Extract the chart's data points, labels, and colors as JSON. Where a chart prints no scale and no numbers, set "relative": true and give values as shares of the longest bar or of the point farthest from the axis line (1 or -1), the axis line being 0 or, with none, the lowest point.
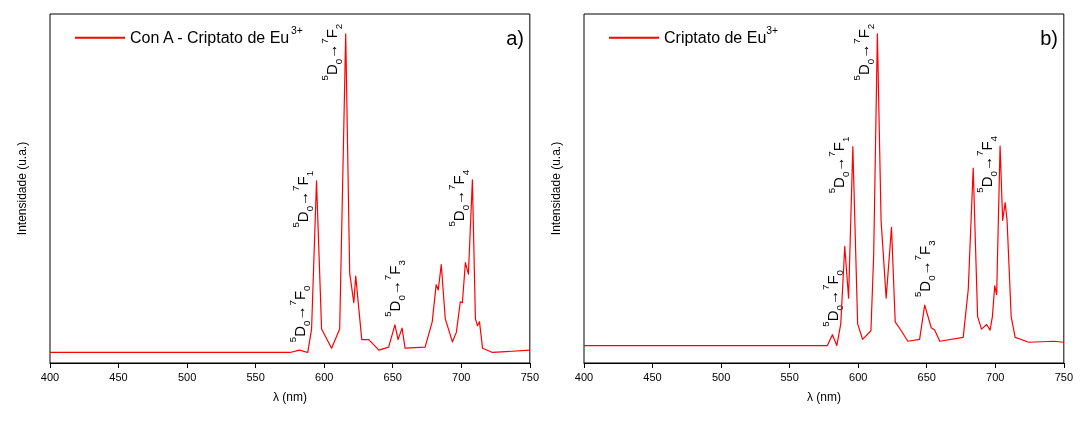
{
  "chart_data": [
    {
      "type": "line",
      "relative": true,
      "xlabel": "λ (nm)",
      "ylabel": "Intensidade (u.a.)",
      "xlim": [
        400,
        750
      ],
      "xticks": [
        400,
        450,
        500,
        550,
        600,
        650,
        700,
        750
      ],
      "grid": false,
      "legend": "top left",
      "marker": "none",
      "line_style": "solid",
      "series": [
        {
          "name": "Con A - Criptato de Eu$^{3+}$",
          "color": "#ff0000",
          "x": [
            400,
            575,
            582,
            588,
            590.8,
            594.4,
            598.1,
            605.4,
            611.3,
            615.7,
            618.6,
            621.6,
            623,
            627.4,
            632.5,
            639.9,
            647,
            651.6,
            653.9,
            656.8,
            659,
            673.6,
            678.8,
            681.7,
            683.2,
            685.4,
            688.3,
            693.5,
            696.4,
            699.3,
            700.8,
            703,
            705.2,
            708.1,
            710.3,
            711.8,
            713.3,
            715.5,
            722.8,
            750
          ],
          "values": [
            0.032,
            0.032,
            0.039,
            0.032,
            0.103,
            0.553,
            0.103,
            0.045,
            0.103,
            1.0,
            0.273,
            0.183,
            0.264,
            0.071,
            0.071,
            0.039,
            0.048,
            0.116,
            0.071,
            0.106,
            0.045,
            0.048,
            0.125,
            0.238,
            0.222,
            0.299,
            0.135,
            0.064,
            0.093,
            0.186,
            0.183,
            0.305,
            0.27,
            0.556,
            0.135,
            0.113,
            0.125,
            0.045,
            0.032,
            0.039
          ]
        }
      ],
      "annotations": [
        "a)",
        {
          "text": "$^{5}$D$_{0}$→$^{7}$F$_{0}$",
          "x": 582,
          "y": 0.039
        },
        {
          "text": "$^{5}$D$_{0}$→$^{7}$F$_{1}$",
          "x": 594.4,
          "y": 0.553
        },
        {
          "text": "$^{5}$D$_{0}$→$^{7}$F$_{2}$",
          "x": 615.7,
          "y": 1.0
        },
        {
          "text": "$^{5}$D$_{0}$→$^{7}$F$_{3}$",
          "x": 651.6,
          "y": 0.116
        },
        {
          "text": "$^{5}$D$_{0}$→$^{7}$F$_{4}$",
          "x": 708.1,
          "y": 0.556
        }
      ]
    },
    {
      "type": "line",
      "relative": true,
      "xlabel": "λ (nm)",
      "ylabel": "Intensidade (u.a.)",
      "xlim": [
        400,
        750
      ],
      "xticks": [
        400,
        450,
        500,
        550,
        600,
        650,
        700,
        750
      ],
      "grid": false,
      "legend": "top left",
      "marker": "none",
      "line_style": "solid",
      "series": [
        {
          "name": "Criptato de Eu$^{3+}$",
          "color": "#ff0000",
          "x": [
            400,
            577.5,
            581.2,
            584.4,
            587.3,
            590.2,
            593,
            596.1,
            599.6,
            603.2,
            609.3,
            611.3,
            614,
            616.7,
            620.4,
            624.3,
            627,
            631.4,
            636.2,
            644.8,
            648.5,
            653.3,
            655.8,
            659.5,
            676.6,
            680.3,
            683.9,
            687.1,
            690,
            693.7,
            696.2,
            697.9,
            699.6,
            701,
            703.5,
            705.4,
            707.2,
            708.6,
            711.6,
            714.5,
            724.3,
            742.6,
            750
          ],
          "values": [
            0.053,
            0.053,
            0.086,
            0.053,
            0.119,
            0.354,
            0.197,
            0.657,
            0.119,
            0.072,
            0.098,
            0.329,
            1.0,
            0.433,
            0.197,
            0.412,
            0.125,
            0.098,
            0.066,
            0.072,
            0.176,
            0.107,
            0.1,
            0.066,
            0.078,
            0.224,
            0.592,
            0.141,
            0.103,
            0.117,
            0.1,
            0.141,
            0.234,
            0.208,
            0.659,
            0.433,
            0.487,
            0.433,
            0.141,
            0.078,
            0.063,
            0.066,
            0.063
          ]
        }
      ],
      "annotations": [
        "b)",
        {
          "text": "$^{5}$D$_{0}$→$^{7}$F$_{0}$",
          "x": 581.2,
          "y": 0.086
        },
        {
          "text": "$^{5}$D$_{0}$→$^{7}$F$_{1}$",
          "x": 596.1,
          "y": 0.657
        },
        {
          "text": "$^{5}$D$_{0}$→$^{7}$F$_{2}$",
          "x": 614,
          "y": 1.0
        },
        {
          "text": "$^{5}$D$_{0}$→$^{7}$F$_{3}$",
          "x": 648.5,
          "y": 0.176
        },
        {
          "text": "$^{5}$D$_{0}$→$^{7}$F$_{4}$",
          "x": 703.5,
          "y": 0.659
        }
      ]
    }
  ]
}
